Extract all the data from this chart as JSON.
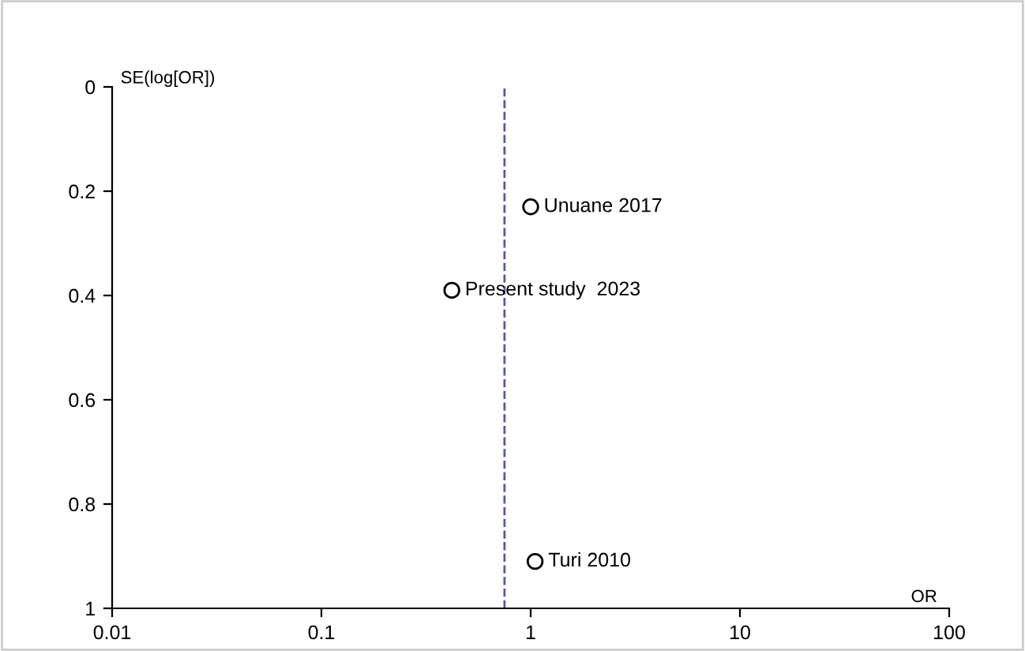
{
  "chart_data": {
    "type": "scatter",
    "xlabel": "OR",
    "ylabel": "SE(log[OR])",
    "log": "x",
    "x": [
      1.0,
      0.42,
      1.05
    ],
    "series": [
      {
        "color": "#000000",
        "values": [
          0.23,
          0.39,
          0.91
        ]
      }
    ],
    "marker": "circle",
    "annotations": [
      {
        "text": "Unuane 2017",
        "x": 1.0,
        "y": 0.23
      },
      {
        "text": "Present study  2023",
        "x": 0.42,
        "y": 0.39
      },
      {
        "text": "Turi 2010",
        "x": 1.05,
        "y": 0.91
      }
    ],
    "ref_lines": [
      {
        "axis": "x",
        "value": 0.75,
        "color": "#5555b0",
        "line_style": "dashed"
      }
    ],
    "xlim": [
      0.01,
      100
    ],
    "xticks": [
      0.01,
      0.1,
      1,
      10,
      100
    ],
    "ylim": [
      1,
      0
    ],
    "yticks": [
      0,
      0.2,
      0.4,
      0.6,
      0.8,
      1
    ],
    "grid": false,
    "legend": false
  }
}
